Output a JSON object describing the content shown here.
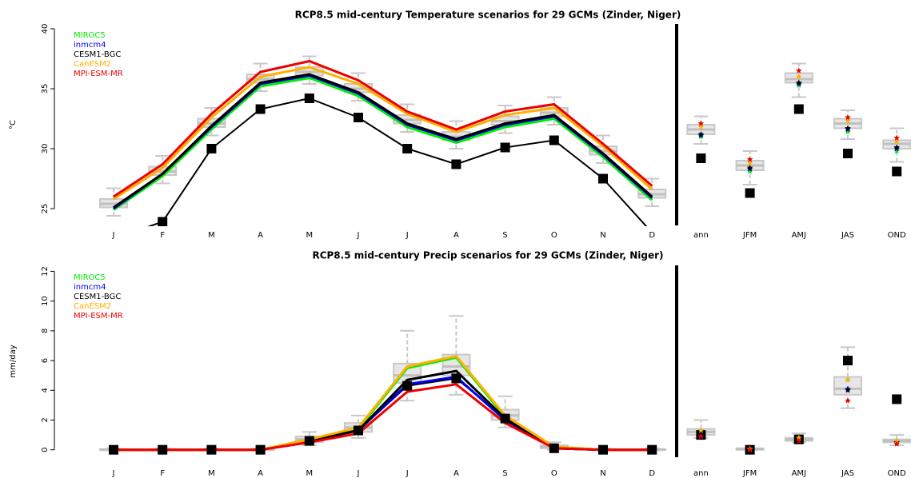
{
  "chart_data": [
    {
      "type": "boxplot",
      "title": "RCP8.5 mid-century Temperature scenarios for 29 GCMs (Zinder, Niger)",
      "ylabel": "°C",
      "categories": [
        "J",
        "F",
        "M",
        "A",
        "M",
        "J",
        "J",
        "A",
        "S",
        "O",
        "N",
        "D"
      ],
      "season_categories": [
        "ann",
        "JFM",
        "AMJ",
        "JAS",
        "OND"
      ],
      "ylim": [
        23.6,
        40.4
      ],
      "yticks": [
        25,
        30,
        35,
        40
      ],
      "boxes": {
        "low": [
          24.4,
          27.1,
          31.1,
          34.8,
          35.4,
          34.0,
          31.4,
          30.0,
          31.3,
          32.0,
          28.8,
          25.2
        ],
        "q1": [
          25.1,
          27.8,
          31.8,
          35.5,
          36.1,
          34.7,
          32.1,
          30.7,
          32.0,
          32.7,
          29.5,
          25.9
        ],
        "median": [
          25.4,
          28.1,
          32.1,
          35.8,
          36.4,
          35.0,
          32.4,
          31.0,
          32.3,
          33.0,
          29.8,
          26.2
        ],
        "q3": [
          25.8,
          28.5,
          32.5,
          36.2,
          36.8,
          35.4,
          32.8,
          31.4,
          32.7,
          33.4,
          30.2,
          26.6
        ],
        "high": [
          26.7,
          29.4,
          33.4,
          37.1,
          37.7,
          36.3,
          33.7,
          32.3,
          33.6,
          34.3,
          31.1,
          27.5
        ]
      },
      "season_boxes": {
        "low": [
          30.4,
          27.0,
          34.3,
          30.8,
          28.9
        ],
        "q1": [
          31.2,
          28.2,
          35.5,
          31.7,
          30.0
        ],
        "median": [
          31.6,
          28.6,
          35.8,
          32.1,
          30.4
        ],
        "q3": [
          32.0,
          29.0,
          36.3,
          32.5,
          30.7
        ],
        "high": [
          32.7,
          29.8,
          37.1,
          33.2,
          31.7
        ]
      },
      "observed": {
        "color": "#000000",
        "values": [
          22.5,
          23.9,
          30.0,
          33.3,
          34.2,
          32.6,
          30.0,
          28.7,
          30.1,
          30.7,
          27.5,
          23.0
        ],
        "season_values": [
          29.2,
          26.3,
          33.3,
          29.6,
          28.1
        ]
      },
      "series": [
        {
          "name": "MIROC5",
          "color": "#00ee00",
          "values": [
            24.9,
            27.7,
            31.6,
            35.2,
            35.9,
            34.4,
            31.8,
            30.5,
            31.8,
            32.5,
            29.3,
            25.7
          ],
          "season_values": [
            31.0,
            28.1,
            35.3,
            31.4,
            29.8
          ]
        },
        {
          "name": "inmcm4",
          "color": "#0000ee",
          "values": [
            25.0,
            27.9,
            31.8,
            35.4,
            36.1,
            34.6,
            32.0,
            30.7,
            32.0,
            32.7,
            29.5,
            25.9
          ],
          "season_values": [
            31.1,
            28.3,
            35.4,
            31.6,
            30.0
          ]
        },
        {
          "name": "CESM1-BGC",
          "color": "#000000",
          "values": [
            25.1,
            27.9,
            31.9,
            35.5,
            36.2,
            34.7,
            32.1,
            30.8,
            32.1,
            32.8,
            29.6,
            26.0
          ],
          "season_values": [
            31.2,
            28.4,
            35.5,
            31.7,
            30.1
          ]
        },
        {
          "name": "CanESM2",
          "color": "#ffb000",
          "values": [
            25.8,
            28.4,
            32.6,
            36.0,
            36.8,
            35.4,
            32.9,
            31.4,
            32.8,
            33.4,
            30.2,
            26.6
          ],
          "season_values": [
            31.8,
            28.8,
            36.0,
            32.3,
            30.6
          ]
        },
        {
          "name": "MPI-ESM-MR",
          "color": "#ee0000",
          "values": [
            26.0,
            28.7,
            32.9,
            36.4,
            37.3,
            35.7,
            33.1,
            31.6,
            33.1,
            33.7,
            30.4,
            26.9
          ],
          "season_values": [
            32.1,
            29.1,
            36.5,
            32.6,
            30.9
          ]
        }
      ]
    },
    {
      "type": "boxplot",
      "title": "RCP8.5 mid-century Precip scenarios for 29 GCMs (Zinder, Niger)",
      "ylabel": "mm/day",
      "categories": [
        "J",
        "F",
        "M",
        "A",
        "M",
        "J",
        "J",
        "A",
        "S",
        "O",
        "N",
        "D"
      ],
      "season_categories": [
        "ann",
        "JFM",
        "AMJ",
        "JAS",
        "OND"
      ],
      "ylim": [
        -0.5,
        12.4
      ],
      "yticks": [
        0,
        2,
        4,
        6,
        8,
        10,
        12
      ],
      "boxes": {
        "low": [
          0,
          0,
          0,
          0,
          0.3,
          0.8,
          3.3,
          3.7,
          1.5,
          0,
          0,
          0
        ],
        "q1": [
          0,
          0,
          0,
          0,
          0.5,
          1.2,
          4.5,
          5.0,
          2.0,
          0.1,
          0,
          0
        ],
        "median": [
          0,
          0,
          0,
          0,
          0.7,
          1.5,
          5.0,
          5.6,
          2.3,
          0.2,
          0,
          0
        ],
        "q3": [
          0.05,
          0.05,
          0.05,
          0.05,
          0.9,
          1.8,
          5.8,
          6.4,
          2.7,
          0.3,
          0.05,
          0.05
        ],
        "high": [
          0.1,
          0.1,
          0.1,
          0.1,
          1.2,
          2.3,
          8.0,
          9.0,
          3.6,
          0.5,
          0.1,
          0.1
        ]
      },
      "season_boxes": {
        "low": [
          0.8,
          0,
          0.5,
          2.8,
          0.3
        ],
        "q1": [
          1.0,
          0,
          0.6,
          3.7,
          0.5
        ],
        "median": [
          1.2,
          0.05,
          0.7,
          4.1,
          0.6
        ],
        "q3": [
          1.4,
          0.1,
          0.8,
          4.9,
          0.7
        ],
        "high": [
          2.0,
          0.1,
          1.1,
          6.9,
          1.0
        ]
      },
      "observed": {
        "color": "#000000",
        "values": [
          0,
          0,
          0,
          0,
          0.6,
          1.3,
          4.3,
          4.8,
          2.1,
          0.1,
          0,
          0
        ],
        "season_values": [
          1.0,
          0,
          0.7,
          6.0,
          3.4
        ]
      },
      "series": [
        {
          "name": "MIROC5",
          "color": "#00ee00",
          "values": [
            0,
            0,
            0,
            0,
            0.7,
            1.4,
            5.5,
            6.2,
            2.2,
            0.2,
            0,
            0
          ],
          "season_values": [
            1.3,
            0.05,
            0.8,
            4.7,
            0.6
          ]
        },
        {
          "name": "inmcm4",
          "color": "#0000ee",
          "values": [
            0,
            0,
            0,
            0,
            0.6,
            1.3,
            4.4,
            4.9,
            2.0,
            0.1,
            0,
            0
          ],
          "season_values": [
            1.0,
            0,
            0.7,
            4.1,
            0.5
          ]
        },
        {
          "name": "CESM1-BGC",
          "color": "#000000",
          "values": [
            0,
            0,
            0,
            0,
            0.6,
            1.3,
            4.7,
            5.3,
            2.1,
            0.1,
            0,
            0
          ],
          "season_values": [
            1.1,
            0,
            0.7,
            4.0,
            0.5
          ]
        },
        {
          "name": "CanESM2",
          "color": "#ffb000",
          "values": [
            0,
            0,
            0,
            0,
            0.7,
            1.5,
            5.6,
            6.3,
            2.3,
            0.2,
            0,
            0
          ],
          "season_values": [
            1.3,
            0.05,
            0.8,
            4.7,
            0.6
          ]
        },
        {
          "name": "MPI-ESM-MR",
          "color": "#ee0000",
          "values": [
            0,
            0,
            0,
            0,
            0.5,
            1.1,
            3.9,
            4.4,
            1.8,
            0.1,
            0,
            0
          ],
          "season_values": [
            0.9,
            0,
            0.6,
            3.3,
            0.4
          ]
        }
      ]
    }
  ]
}
